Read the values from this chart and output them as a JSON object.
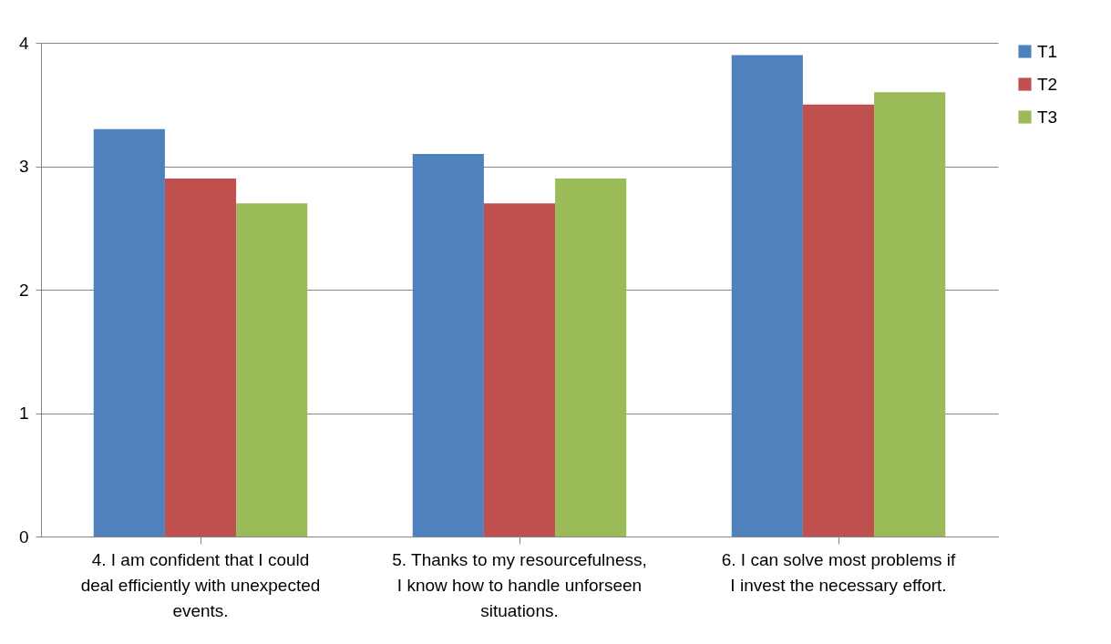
{
  "chart_data": {
    "type": "bar",
    "categories": [
      "4. I am confident that I could deal efficiently with unexpected events.",
      "5. Thanks to my resourcefulness, I know how to handle unforseen situations.",
      "6. I can solve most problems if I invest the necessary effort."
    ],
    "series": [
      {
        "name": "T1",
        "color": "#4f81bd",
        "values": [
          3.3,
          3.1,
          3.9
        ]
      },
      {
        "name": "T2",
        "color": "#c0504d",
        "values": [
          2.9,
          2.7,
          3.5
        ]
      },
      {
        "name": "T3",
        "color": "#9bbb59",
        "values": [
          2.7,
          2.9,
          3.6
        ]
      }
    ],
    "ylim": [
      0,
      4
    ],
    "yticks": [
      0,
      1,
      2,
      3,
      4
    ],
    "grid": "y",
    "legend": "right"
  }
}
